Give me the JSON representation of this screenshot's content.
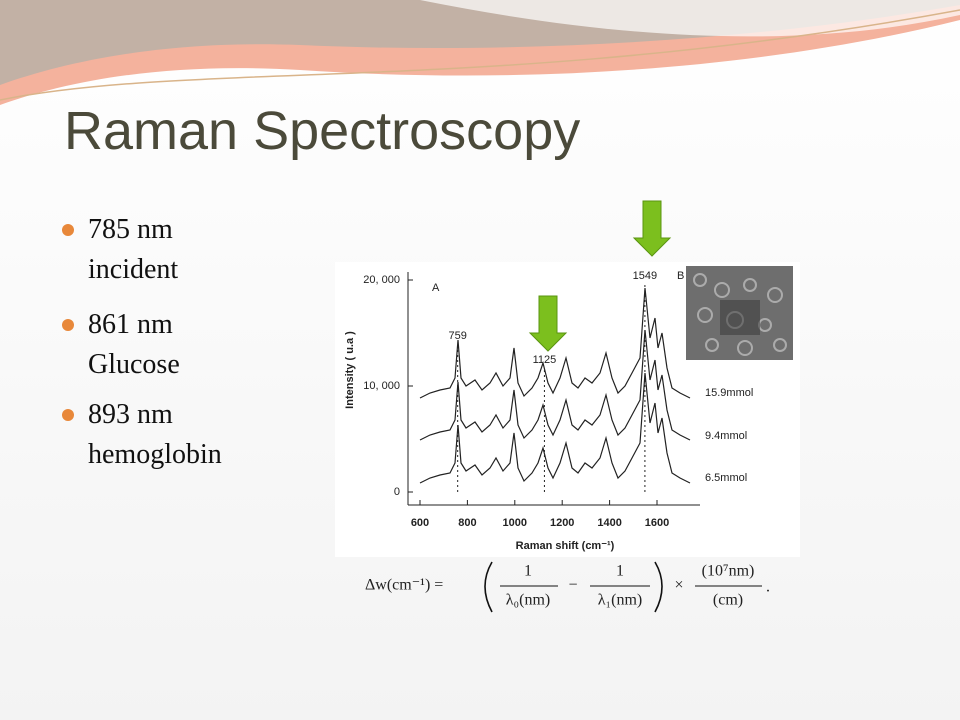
{
  "title": "Raman Spectroscopy",
  "bullets": [
    {
      "lines": [
        "785 nm",
        "incident"
      ]
    },
    {
      "lines": [
        "861 nm",
        "Glucose"
      ]
    },
    {
      "lines": [
        "893 nm",
        "hemoglobin"
      ]
    }
  ],
  "figure": {
    "panel_a": "A",
    "panel_b": "B",
    "y_axis_label": "Intensity ( u.a )",
    "x_axis_label": "Raman shift (cm⁻¹)",
    "xticks": [
      600,
      800,
      1000,
      1200,
      1400,
      1600
    ],
    "yticks": [
      {
        "value": 0,
        "label": "0"
      },
      {
        "value": 10000,
        "label": "10, 000"
      },
      {
        "value": 20000,
        "label": "20, 000"
      }
    ],
    "peaks": [
      759,
      1125,
      1549
    ],
    "series_labels": [
      "15.9mmol",
      "9.4mmol",
      "6.5mmol"
    ]
  },
  "formula": {
    "lhs": "Δw(cm⁻¹) =",
    "num1": "1",
    "den1": "λ₀(nm)",
    "minus": "−",
    "num2": "1",
    "den2": "λ₁(nm)",
    "times": "×",
    "num3": "(10⁷nm)",
    "den3": "(cm)",
    "end": "."
  }
}
